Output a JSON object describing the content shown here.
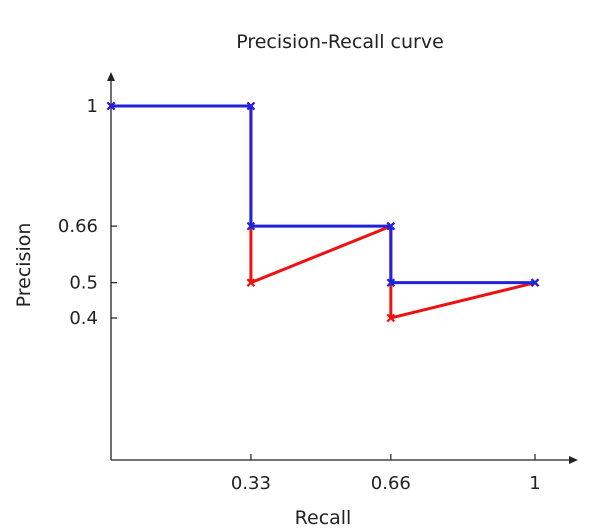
{
  "chart_data": {
    "type": "line",
    "title": "Precision-Recall curve",
    "xlabel": "Recall",
    "ylabel": "Precision",
    "xlim": [
      0,
      1
    ],
    "ylim": [
      0,
      1
    ],
    "x_ticks": [
      {
        "value": 0.33,
        "label": "0.33"
      },
      {
        "value": 0.66,
        "label": "0.66"
      },
      {
        "value": 1,
        "label": "1"
      }
    ],
    "y_ticks": [
      {
        "value": 1,
        "label": "1"
      },
      {
        "value": 0.66,
        "label": "0.66"
      },
      {
        "value": 0.5,
        "label": "0.5"
      },
      {
        "value": 0.4,
        "label": "0.4"
      }
    ],
    "grid": false,
    "series": [
      {
        "color": "#ee1111",
        "points": [
          [
            0,
            1
          ],
          [
            0.33,
            1
          ],
          [
            0.33,
            0.5
          ],
          [
            0.66,
            0.66
          ],
          [
            0.66,
            0.4
          ],
          [
            1,
            0.5
          ]
        ]
      },
      {
        "color": "#2222dd",
        "points": [
          [
            0,
            1
          ],
          [
            0.33,
            1
          ],
          [
            0.33,
            0.66
          ],
          [
            0.66,
            0.66
          ],
          [
            0.66,
            0.5
          ],
          [
            1,
            0.5
          ]
        ]
      }
    ]
  }
}
